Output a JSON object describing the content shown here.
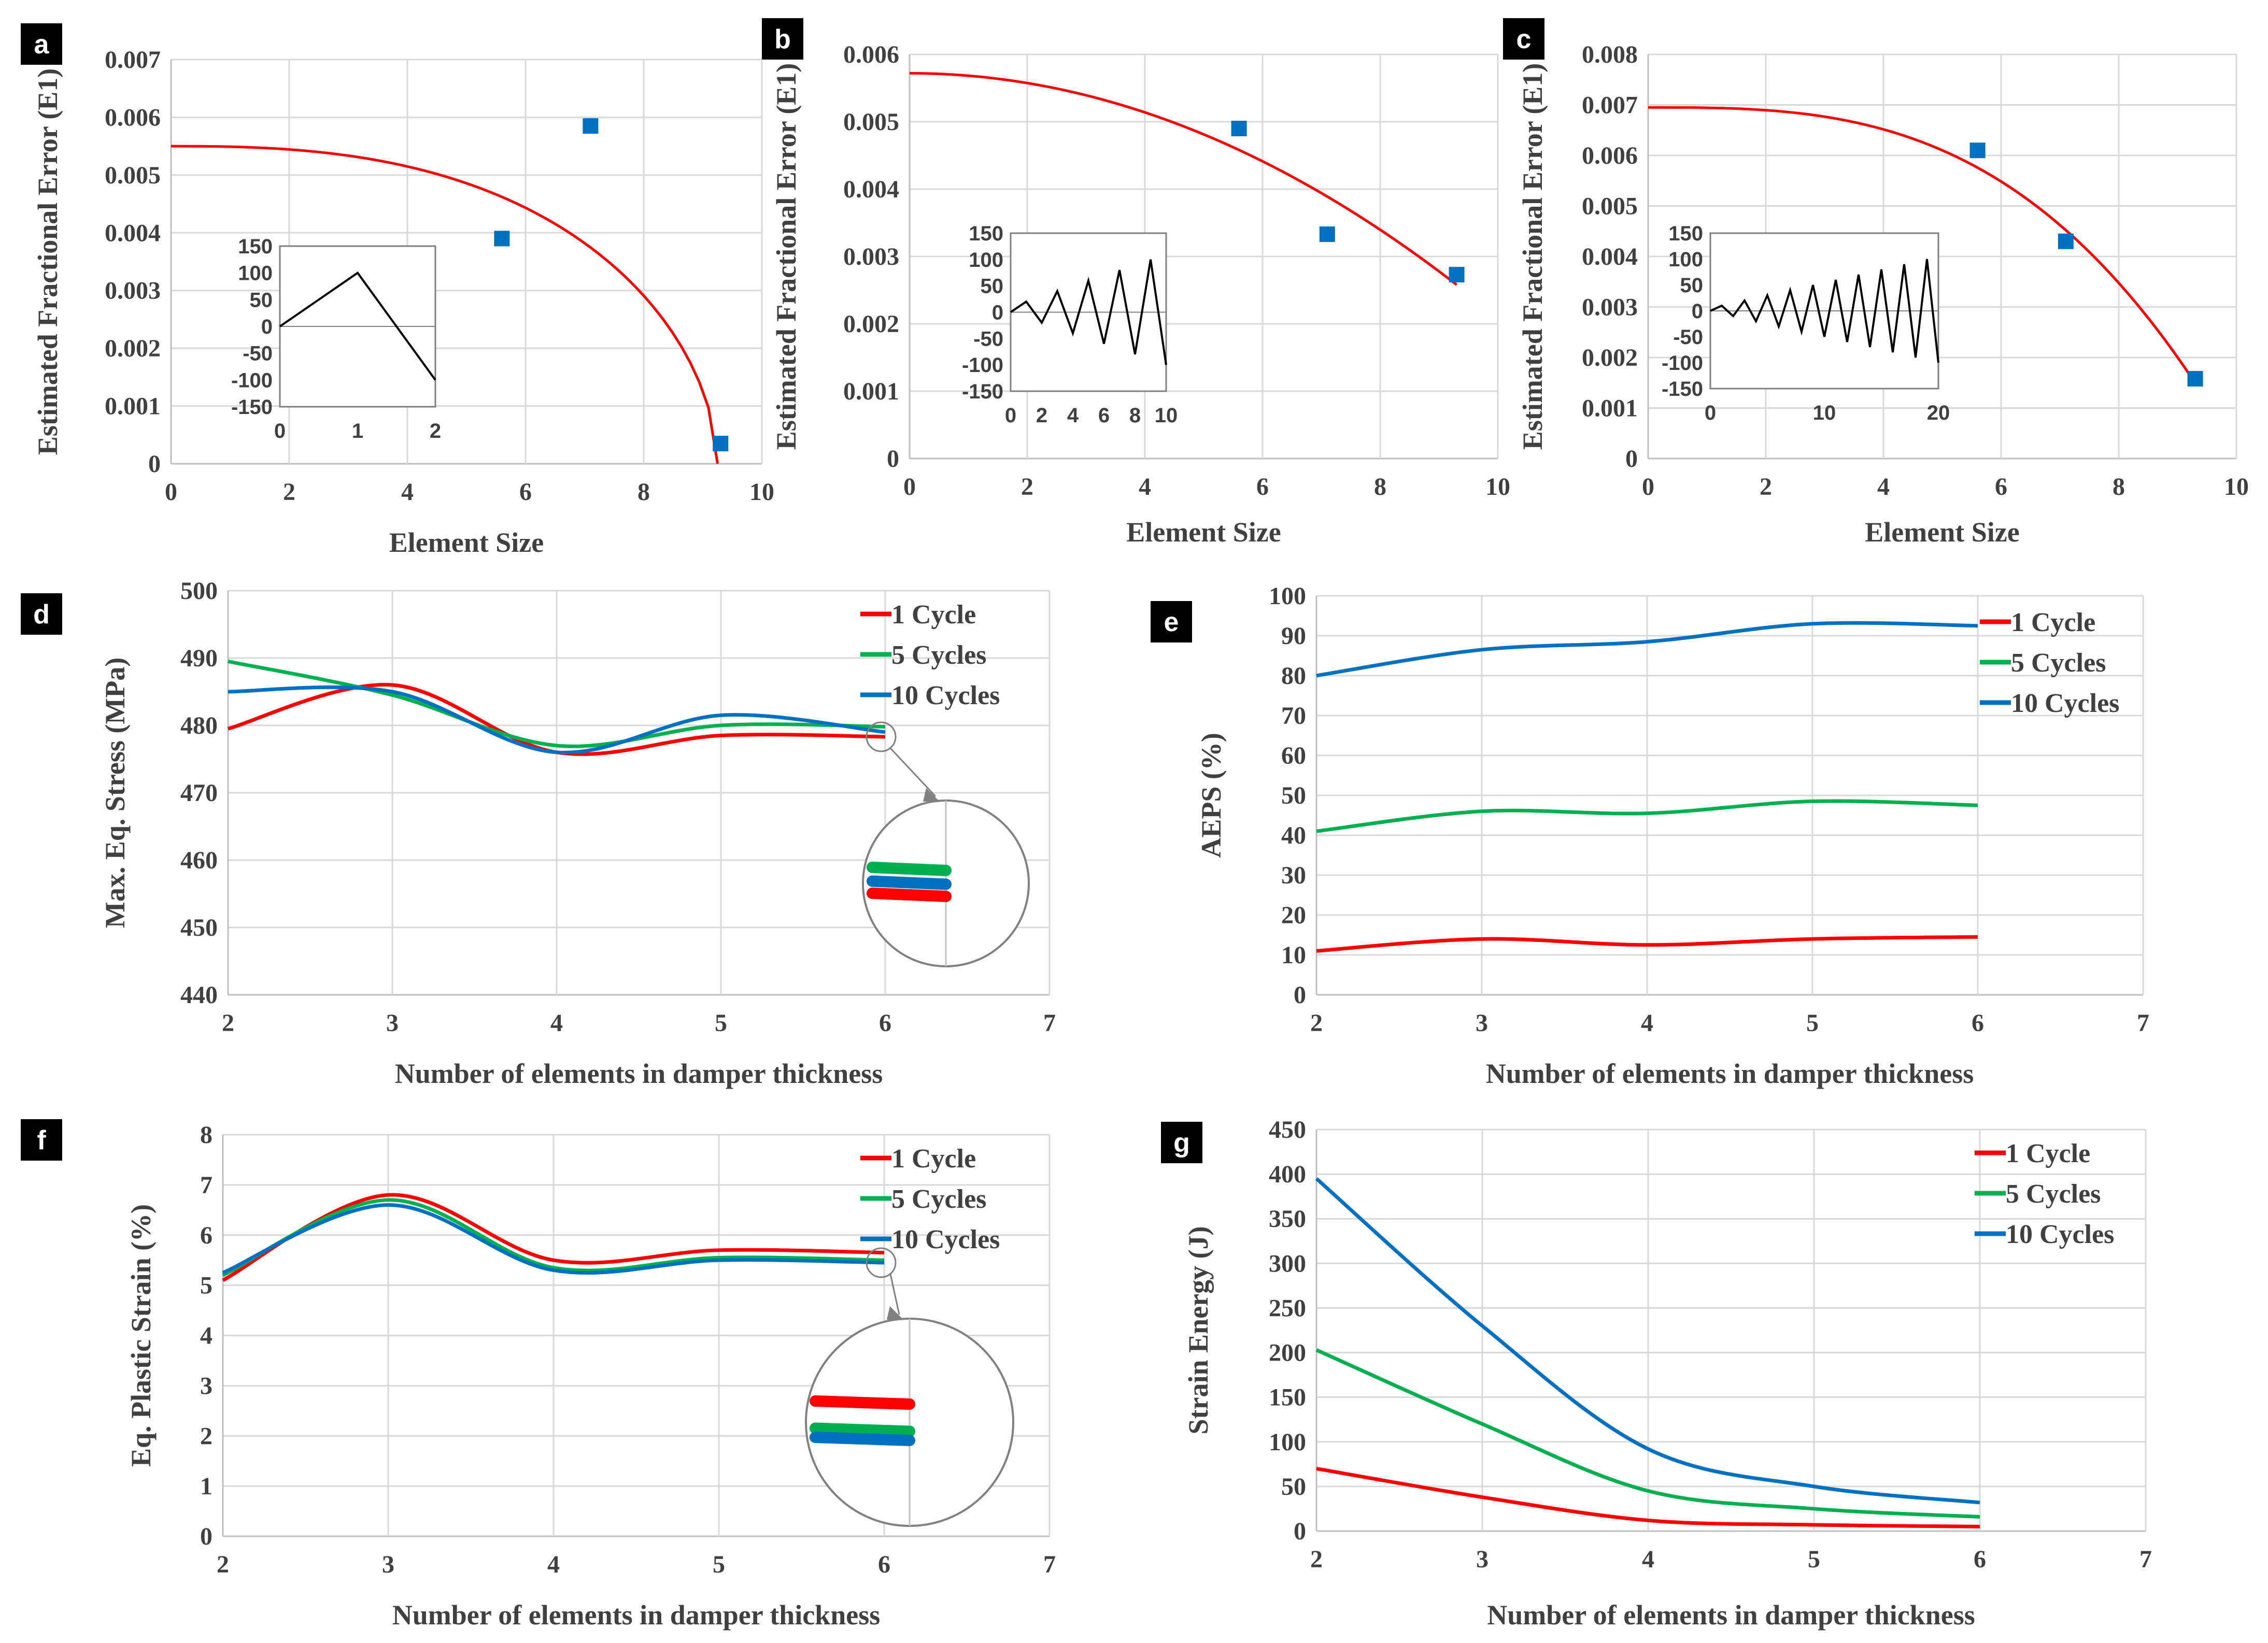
{
  "colors": {
    "red": "#ff0000",
    "green": "#00b050",
    "blue": "#0070c0",
    "marker": "#0070c0",
    "inset": "#000000"
  },
  "chart_data": [
    {
      "id": "a",
      "type": "scatter",
      "panel_label": "a",
      "xlabel": "Element Size",
      "ylabel": "Estimated Fractional Error (E1)",
      "xlim": [
        0,
        10
      ],
      "ylim": [
        0,
        0.007
      ],
      "xticks": [
        "0",
        "2",
        "4",
        "6",
        "8",
        "10"
      ],
      "yticks": [
        "0",
        "0.001",
        "0.002",
        "0.003",
        "0.004",
        "0.005",
        "0.006",
        "0.007"
      ],
      "points": [
        [
          5.6,
          0.0039
        ],
        [
          7.1,
          0.00585
        ],
        [
          9.3,
          0.00035
        ]
      ],
      "fit": {
        "type": "curve",
        "color": "red",
        "y0": 0.0055,
        "x_end": 9.25,
        "exponent": 2.6
      },
      "inset": {
        "xticks": [
          "0",
          "1",
          "2"
        ],
        "xlim": [
          0,
          2
        ],
        "yticks": [
          "150",
          "100",
          "50",
          "0",
          "-50",
          "-100",
          "-150"
        ],
        "ylim": [
          -150,
          150
        ],
        "x": [
          0,
          1,
          2
        ],
        "y": [
          0,
          100,
          -100
        ]
      }
    },
    {
      "id": "b",
      "type": "scatter",
      "panel_label": "b",
      "xlabel": "Element Size",
      "ylabel": "Estimated Fractional Error (E1)",
      "xlim": [
        0,
        10
      ],
      "ylim": [
        0,
        0.006
      ],
      "xticks": [
        "0",
        "2",
        "4",
        "6",
        "8",
        "10"
      ],
      "yticks": [
        "0",
        "0.001",
        "0.002",
        "0.003",
        "0.004",
        "0.005",
        "0.006"
      ],
      "points": [
        [
          5.6,
          0.0049
        ],
        [
          7.1,
          0.00333
        ],
        [
          9.3,
          0.00273
        ]
      ],
      "fit": {
        "type": "curve",
        "color": "red",
        "y0": 0.00572,
        "x_end": 9.3,
        "exponent": 2.0
      },
      "inset": {
        "xticks": [
          "0",
          "2",
          "4",
          "6",
          "8",
          "10"
        ],
        "xlim": [
          0,
          10
        ],
        "yticks": [
          "150",
          "100",
          "50",
          "0",
          "-50",
          "-100",
          "-150"
        ],
        "ylim": [
          -150,
          150
        ],
        "x": [
          0,
          1,
          2,
          3,
          4,
          5,
          6,
          7,
          8,
          9,
          10
        ],
        "y": [
          0,
          20,
          -20,
          40,
          -40,
          60,
          -60,
          80,
          -80,
          100,
          -100
        ]
      }
    },
    {
      "id": "c",
      "type": "scatter",
      "panel_label": "c",
      "xlabel": "Element Size",
      "ylabel": "Estimated Fractional Error (E1)",
      "xlim": [
        0,
        10
      ],
      "ylim": [
        0,
        0.008
      ],
      "xticks": [
        "0",
        "2",
        "4",
        "6",
        "8",
        "10"
      ],
      "yticks": [
        "0",
        "0.001",
        "0.002",
        "0.003",
        "0.004",
        "0.005",
        "0.006",
        "0.007",
        "0.008"
      ],
      "points": [
        [
          5.6,
          0.0061
        ],
        [
          7.1,
          0.0043
        ],
        [
          9.3,
          0.00158
        ]
      ],
      "fit": {
        "type": "curve",
        "color": "red",
        "y0": 0.00695,
        "x_end": 9.25,
        "exponent": 3.0
      },
      "inset": {
        "xticks": [
          "0",
          "10",
          "20"
        ],
        "xlim": [
          0,
          20
        ],
        "yticks": [
          "150",
          "100",
          "50",
          "0",
          "-50",
          "-100",
          "-150"
        ],
        "ylim": [
          -150,
          150
        ],
        "x": [
          0,
          1,
          2,
          3,
          4,
          5,
          6,
          7,
          8,
          9,
          10,
          11,
          12,
          13,
          14,
          15,
          16,
          17,
          18,
          19,
          20
        ],
        "y": [
          0,
          10,
          -10,
          20,
          -20,
          30,
          -30,
          40,
          -40,
          50,
          -50,
          60,
          -60,
          70,
          -70,
          80,
          -80,
          90,
          -90,
          100,
          -100
        ]
      }
    },
    {
      "id": "d",
      "type": "line",
      "panel_label": "d",
      "xlabel": "Number of elements in damper thickness",
      "ylabel": "Max. Eq. Stress (MPa)",
      "xlim": [
        2,
        7
      ],
      "ylim": [
        440,
        500
      ],
      "xticks": [
        "2",
        "3",
        "4",
        "5",
        "6",
        "7"
      ],
      "yticks": [
        "440",
        "450",
        "460",
        "470",
        "480",
        "490",
        "500"
      ],
      "x": [
        2,
        3,
        4,
        5,
        6
      ],
      "series": [
        {
          "name": "1 Cycle",
          "color": "red",
          "values": [
            479.5,
            486,
            476,
            478.5,
            478.3
          ]
        },
        {
          "name": "5 Cycles",
          "color": "green",
          "values": [
            489.5,
            484.5,
            477,
            480,
            479.8
          ]
        },
        {
          "name": "10 Cycles",
          "color": "blue",
          "values": [
            485,
            485,
            476,
            481.5,
            479
          ]
        }
      ],
      "zoom": true
    },
    {
      "id": "e",
      "type": "line",
      "panel_label": "e",
      "xlabel": "Number of elements in damper thickness",
      "ylabel": "AEPS (%)",
      "xlim": [
        2,
        7
      ],
      "ylim": [
        0,
        100
      ],
      "xticks": [
        "2",
        "3",
        "4",
        "5",
        "6",
        "7"
      ],
      "yticks": [
        "0",
        "10",
        "20",
        "30",
        "40",
        "50",
        "60",
        "70",
        "80",
        "90",
        "100"
      ],
      "x": [
        2,
        3,
        4,
        5,
        6
      ],
      "series": [
        {
          "name": "1 Cycle",
          "color": "red",
          "values": [
            11,
            14,
            12.5,
            14,
            14.5
          ]
        },
        {
          "name": "5 Cycles",
          "color": "green",
          "values": [
            41,
            46,
            45.5,
            48.5,
            47.5
          ]
        },
        {
          "name": "10 Cycles",
          "color": "blue",
          "values": [
            80,
            86.5,
            88.5,
            93,
            92.5
          ]
        }
      ],
      "zoom": false
    },
    {
      "id": "f",
      "type": "line",
      "panel_label": "f",
      "xlabel": "Number of elements in damper thickness",
      "ylabel": "Eq. Plastic Strain (%)",
      "xlim": [
        2,
        7
      ],
      "ylim": [
        0,
        8
      ],
      "xticks": [
        "2",
        "3",
        "4",
        "5",
        "6",
        "7"
      ],
      "yticks": [
        "0",
        "1",
        "2",
        "3",
        "4",
        "5",
        "6",
        "7",
        "8"
      ],
      "x": [
        2,
        3,
        4,
        5,
        6
      ],
      "series": [
        {
          "name": "1 Cycle",
          "color": "red",
          "values": [
            5.1,
            6.8,
            5.5,
            5.7,
            5.65
          ]
        },
        {
          "name": "5 Cycles",
          "color": "green",
          "values": [
            5.2,
            6.7,
            5.35,
            5.55,
            5.5
          ]
        },
        {
          "name": "10 Cycles",
          "color": "blue",
          "values": [
            5.25,
            6.6,
            5.3,
            5.5,
            5.45
          ]
        }
      ],
      "zoom": true
    },
    {
      "id": "g",
      "type": "line",
      "panel_label": "g",
      "xlabel": "Number of elements in damper thickness",
      "ylabel": "Strain Energy (J)",
      "xlim": [
        2,
        7
      ],
      "ylim": [
        0,
        450
      ],
      "xticks": [
        "2",
        "3",
        "4",
        "5",
        "6",
        "7"
      ],
      "yticks": [
        "0",
        "50",
        "100",
        "150",
        "200",
        "250",
        "300",
        "350",
        "400",
        "450"
      ],
      "x": [
        2,
        3,
        4,
        5,
        6
      ],
      "series": [
        {
          "name": "1 Cycle",
          "color": "red",
          "values": [
            70,
            38,
            12,
            7,
            5
          ]
        },
        {
          "name": "5 Cycles",
          "color": "green",
          "values": [
            203,
            120,
            45,
            25,
            16
          ]
        },
        {
          "name": "10 Cycles",
          "color": "blue",
          "values": [
            395,
            230,
            92,
            50,
            32
          ]
        }
      ],
      "zoom": false
    }
  ]
}
